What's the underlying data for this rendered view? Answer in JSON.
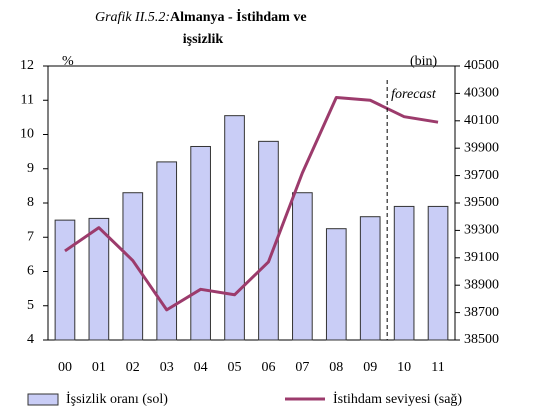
{
  "chart_data": {
    "type": "bar_line",
    "title_number": "Grafik II.5.2:",
    "title": [
      "Almanya - İstihdam ve",
      "işsizlik"
    ],
    "ylabel": "%",
    "y2label": "(bin)",
    "annotation": "forecast",
    "categories": [
      "00",
      "01",
      "02",
      "03",
      "04",
      "05",
      "06",
      "07",
      "08",
      "09",
      "10",
      "11"
    ],
    "series": [
      {
        "name": "İşsizlik oranı (sol)",
        "color": "#c9cdf6",
        "kind": "bar",
        "values": [
          7.5,
          7.55,
          8.3,
          9.2,
          9.65,
          10.55,
          9.8,
          8.3,
          7.25,
          7.6,
          7.9,
          7.9
        ]
      },
      {
        "name": "İstihdam seviyesi (sağ)",
        "color": "#9c3b6c",
        "kind": "line",
        "axis": "y2",
        "values": [
          39150,
          39320,
          39080,
          38720,
          38870,
          38830,
          39070,
          39720,
          40270,
          40250,
          40130,
          40090
        ]
      }
    ],
    "ylim": [
      4,
      12
    ],
    "yticks": [
      4,
      5,
      6,
      7,
      8,
      9,
      10,
      11,
      12
    ],
    "y2lim": [
      38500,
      40500
    ],
    "y2ticks": [
      38500,
      38700,
      38900,
      39100,
      39300,
      39500,
      39700,
      39900,
      40100,
      40300,
      40500
    ]
  }
}
